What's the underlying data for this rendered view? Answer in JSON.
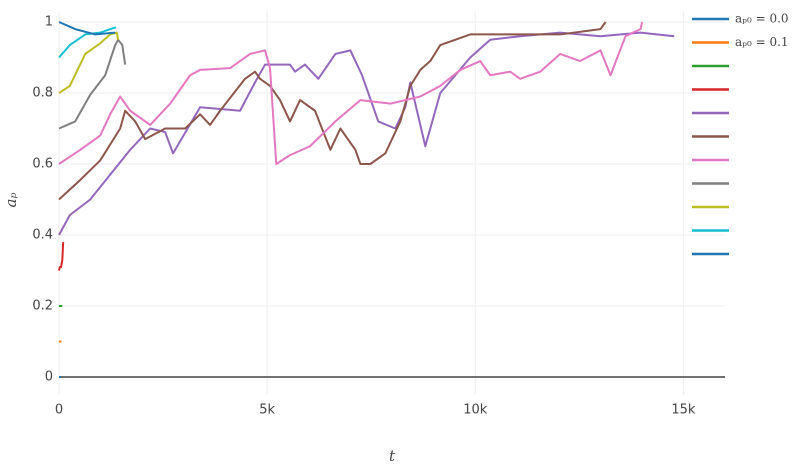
{
  "chart_data": {
    "type": "line",
    "x_label": "t",
    "y_label": "aₚ",
    "xlim": [
      0,
      16000
    ],
    "ylim": [
      -0.05,
      1.03
    ],
    "xticks": [
      0,
      {
        "value": 5000,
        "label": "5k"
      },
      {
        "value": 10000,
        "label": "10k"
      },
      {
        "value": 15000,
        "label": "15k"
      }
    ],
    "yticks": [
      0,
      0.2,
      0.4,
      0.6,
      0.8,
      1
    ],
    "grid": true,
    "legend": "right",
    "series": [
      {
        "name": "aₚ₀ = 0.0",
        "color": "#1f77b4",
        "x": [
          0,
          50
        ],
        "values": [
          0,
          0
        ]
      },
      {
        "name": "aₚ₀ = 0.1",
        "color": "#ff7f0e",
        "x": [
          0,
          60
        ],
        "values": [
          0.1,
          0.1
        ]
      },
      {
        "color": "#2ca02c",
        "x": [
          0,
          80
        ],
        "values": [
          0.2,
          0.2
        ]
      },
      {
        "color": "#d62728",
        "x": [
          0,
          20,
          50,
          80,
          100
        ],
        "values": [
          0.3,
          0.31,
          0.31,
          0.33,
          0.38
        ]
      },
      {
        "color": "#9467bd",
        "x": [
          0,
          260,
          750,
          1230,
          1710,
          2190,
          2550,
          2740,
          3390,
          4350,
          4710,
          4950,
          5550,
          5670,
          5910,
          6230,
          6640,
          7000,
          7280,
          7670,
          8080,
          8320,
          8440,
          8800,
          9160,
          9880,
          10360,
          11080,
          12040,
          13010,
          13970,
          14780
        ],
        "values": [
          0.4,
          0.456,
          0.5,
          0.57,
          0.64,
          0.7,
          0.69,
          0.63,
          0.76,
          0.75,
          0.83,
          0.88,
          0.88,
          0.86,
          0.88,
          0.84,
          0.91,
          0.92,
          0.85,
          0.72,
          0.7,
          0.76,
          0.83,
          0.65,
          0.8,
          0.9,
          0.95,
          0.96,
          0.97,
          0.96,
          0.97,
          0.96
        ]
      },
      {
        "color": "#8c564b",
        "x": [
          0,
          510,
          990,
          1470,
          1590,
          1830,
          2070,
          2550,
          3030,
          3390,
          3630,
          3870,
          4470,
          4710,
          4830,
          5070,
          5310,
          5550,
          5790,
          6150,
          6520,
          6760,
          7120,
          7240,
          7480,
          7840,
          8200,
          8440,
          8680,
          8920,
          9160,
          9880,
          11080,
          12040,
          13010,
          13130
        ],
        "values": [
          0.5,
          0.555,
          0.61,
          0.7,
          0.75,
          0.72,
          0.67,
          0.7,
          0.7,
          0.74,
          0.71,
          0.75,
          0.84,
          0.86,
          0.84,
          0.82,
          0.78,
          0.72,
          0.78,
          0.75,
          0.64,
          0.7,
          0.64,
          0.6,
          0.6,
          0.63,
          0.72,
          0.82,
          0.865,
          0.89,
          0.935,
          0.965,
          0.965,
          0.965,
          0.98,
          1.0
        ]
      },
      {
        "color": "#e377c2",
        "x": [
          0,
          510,
          990,
          1230,
          1470,
          1710,
          2190,
          2670,
          3150,
          3390,
          4110,
          4590,
          4950,
          5070,
          5220,
          5550,
          6030,
          6640,
          7240,
          7960,
          8680,
          9160,
          9640,
          10120,
          10360,
          10840,
          11080,
          11560,
          12040,
          12520,
          13010,
          13250,
          13610,
          13970,
          14010
        ],
        "values": [
          0.6,
          0.64,
          0.68,
          0.74,
          0.79,
          0.75,
          0.71,
          0.77,
          0.85,
          0.865,
          0.87,
          0.91,
          0.92,
          0.87,
          0.6,
          0.625,
          0.65,
          0.72,
          0.78,
          0.77,
          0.79,
          0.82,
          0.865,
          0.89,
          0.85,
          0.86,
          0.84,
          0.86,
          0.91,
          0.89,
          0.92,
          0.85,
          0.96,
          0.98,
          1.0
        ]
      },
      {
        "color": "#7f7f7f",
        "x": [
          0,
          390,
          750,
          1110,
          1350,
          1420,
          1520,
          1590
        ],
        "values": [
          0.7,
          0.72,
          0.795,
          0.85,
          0.935,
          0.95,
          0.935,
          0.88
        ]
      },
      {
        "color": "#bcbd22",
        "x": [
          0,
          260,
          630,
          990,
          1230,
          1390,
          1420
        ],
        "values": [
          0.8,
          0.82,
          0.91,
          0.94,
          0.965,
          0.97,
          0.95
        ]
      },
      {
        "color": "#17becf",
        "x": [
          0,
          260,
          630,
          990,
          1230,
          1370
        ],
        "values": [
          0.9,
          0.935,
          0.965,
          0.97,
          0.98,
          0.985
        ]
      },
      {
        "color": "#1f77b4",
        "x": [
          0,
          390,
          870,
          1350
        ],
        "values": [
          1.0,
          0.98,
          0.965,
          0.97
        ]
      }
    ]
  }
}
